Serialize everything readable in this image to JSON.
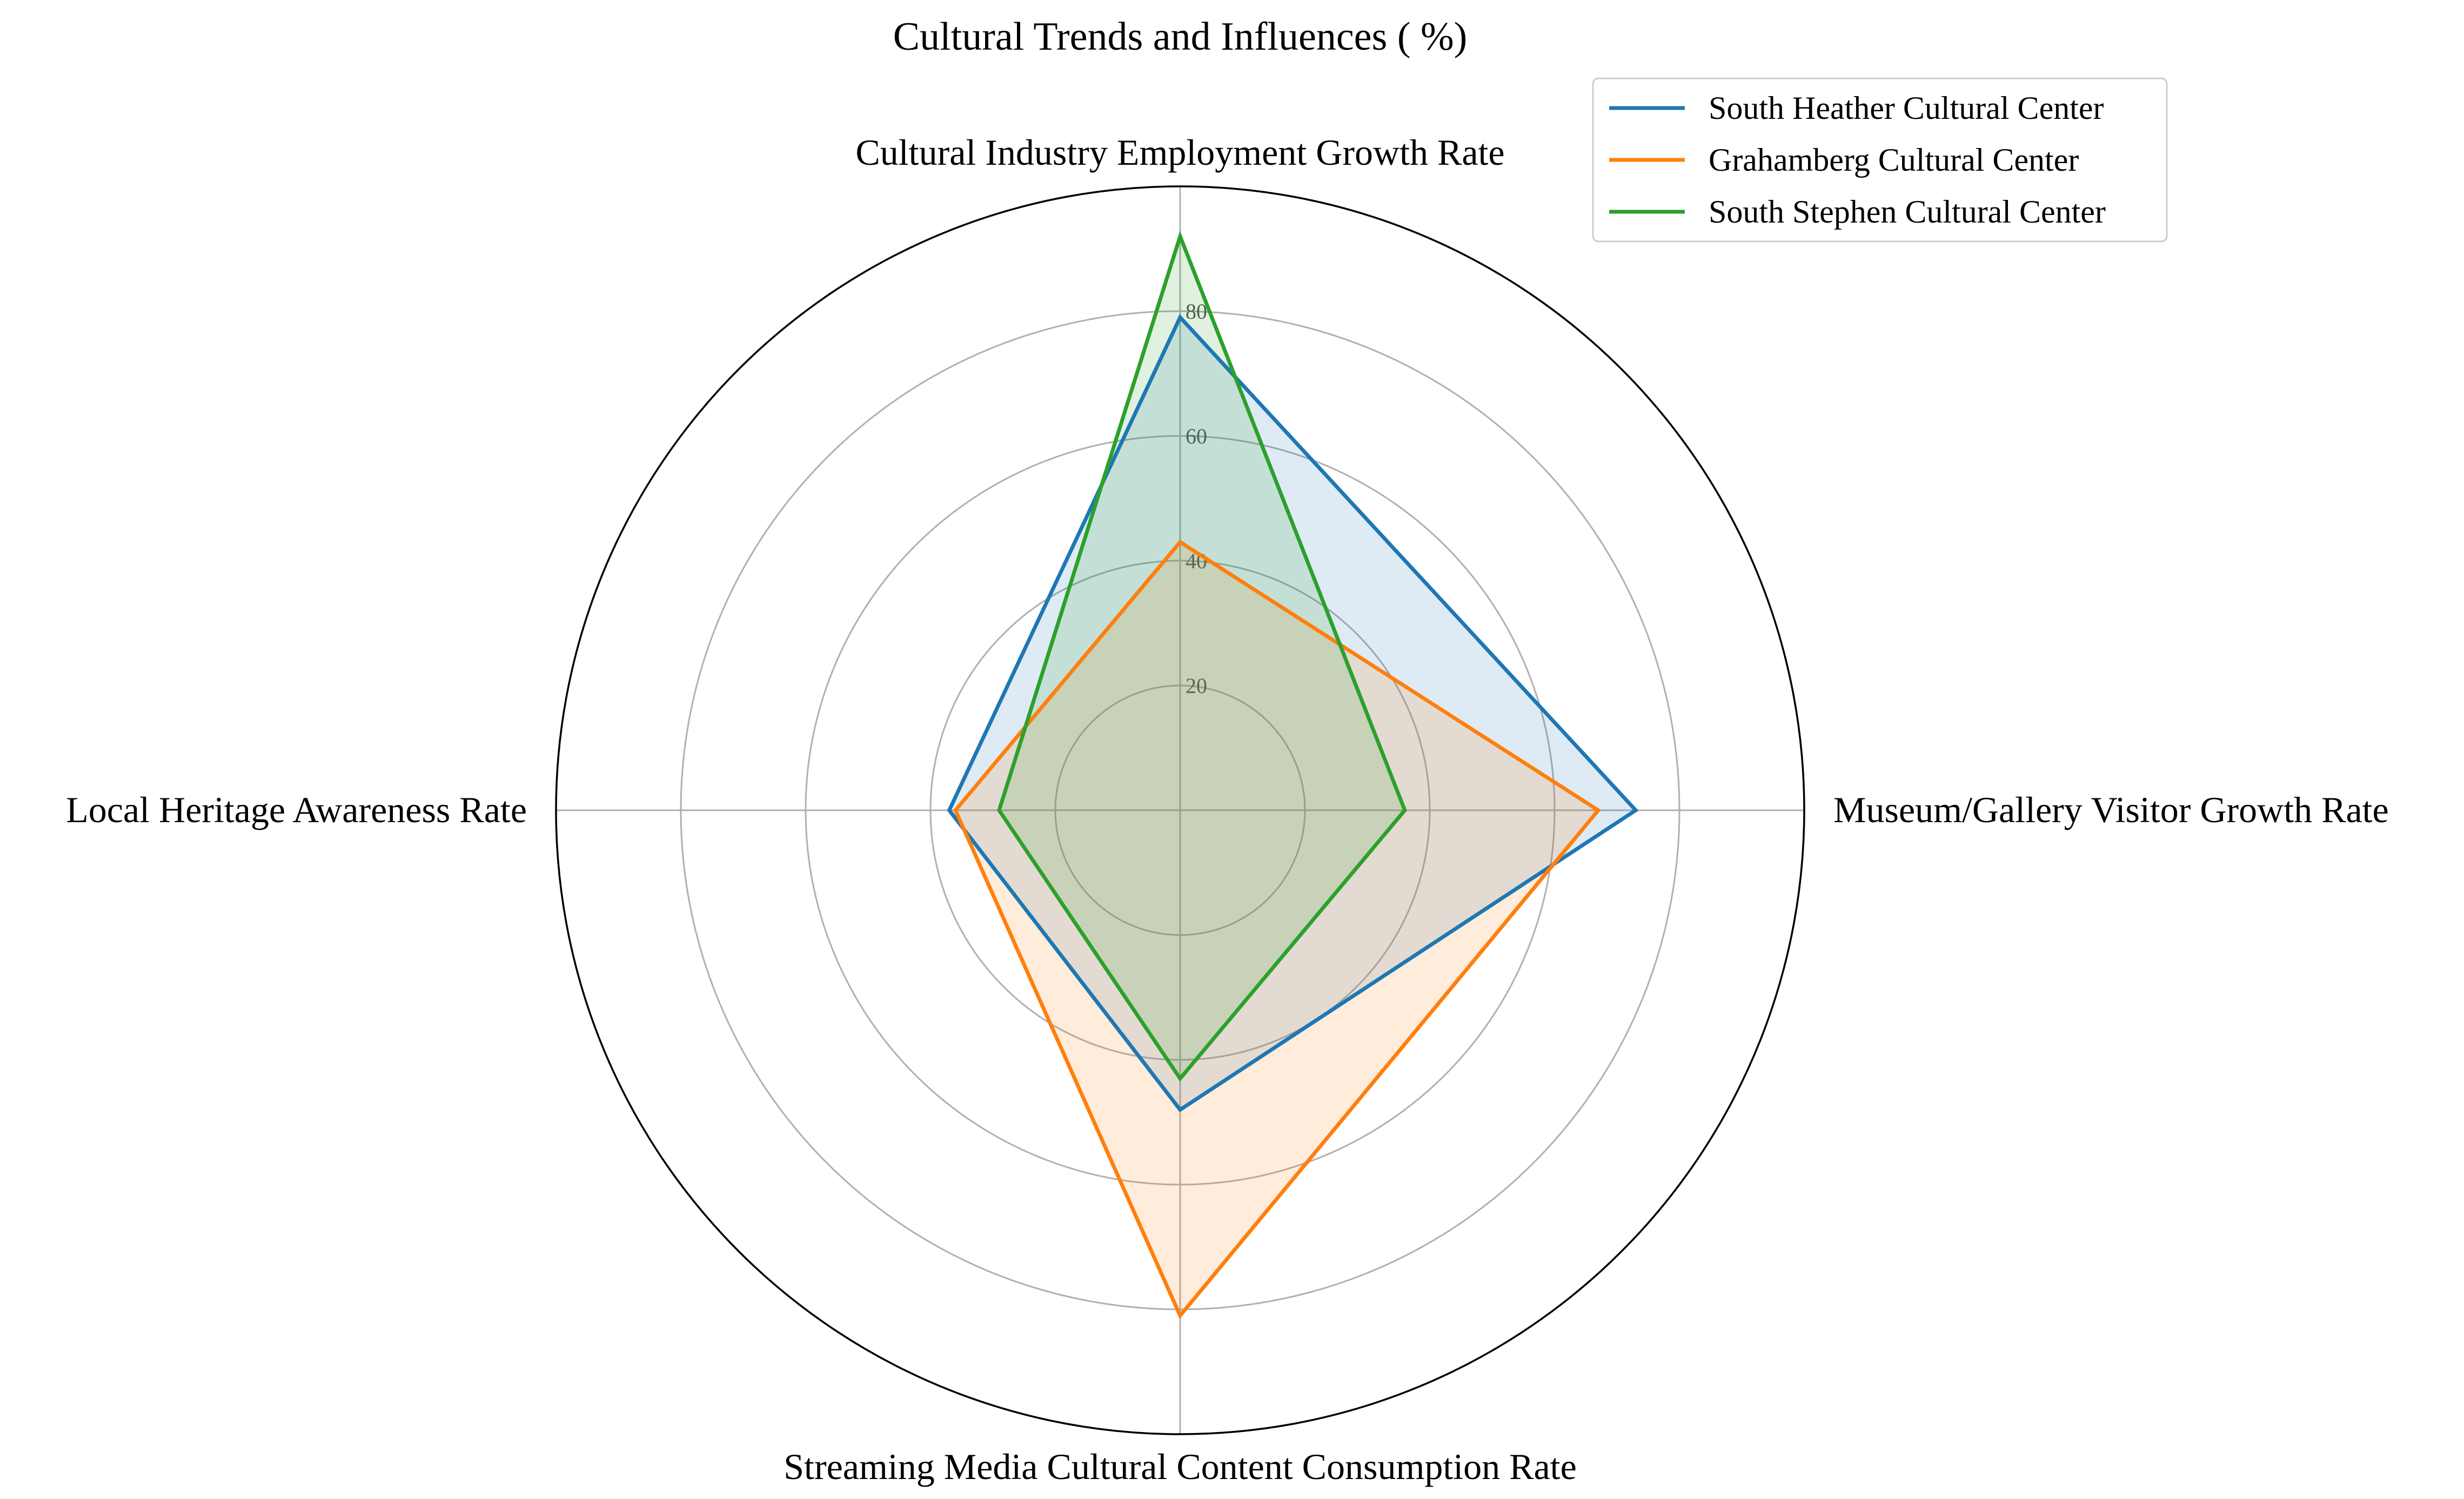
{
  "chart_data": {
    "type": "radar",
    "title": "Cultural Trends and Influences ( %)",
    "axes": [
      "Cultural Industry Employment Growth Rate",
      "Museum/Gallery Visitor Growth Rate",
      "Streaming Media Cultural Content Consumption Rate",
      "Local Heritage Awareness Rate"
    ],
    "rlim": [
      0,
      100
    ],
    "rticks": [
      20,
      40,
      60,
      80
    ],
    "rtick_labels": [
      "20",
      "40",
      "60",
      "80"
    ],
    "grid": true,
    "legend_position": "top-right",
    "series": [
      {
        "name": "South Heather Cultural Center",
        "color": "#1f77b4",
        "values": [
          79,
          73,
          48,
          37
        ]
      },
      {
        "name": "Grahamberg Cultural Center",
        "color": "#ff7f0e",
        "values": [
          43,
          67,
          81,
          36
        ]
      },
      {
        "name": "South Stephen Cultural Center",
        "color": "#2ca02c",
        "values": [
          92,
          36,
          43,
          29
        ]
      }
    ]
  }
}
